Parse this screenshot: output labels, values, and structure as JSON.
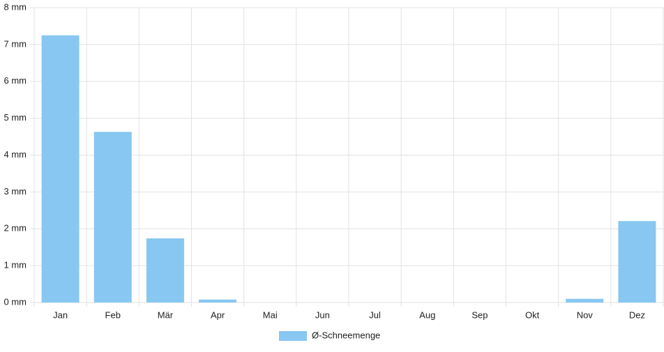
{
  "chart_data": {
    "type": "bar",
    "categories": [
      "Jan",
      "Feb",
      "Mär",
      "Apr",
      "Mai",
      "Jun",
      "Jul",
      "Aug",
      "Sep",
      "Okt",
      "Nov",
      "Dez"
    ],
    "series": [
      {
        "name": "Ø-Schneemenge",
        "color": "#88c7f1",
        "values": [
          7.25,
          4.63,
          1.74,
          0.08,
          0,
          0,
          0,
          0,
          0,
          0,
          0.1,
          2.21
        ]
      }
    ],
    "ylim": [
      0,
      8
    ],
    "yticks": [
      {
        "value": 0,
        "label": "0 mm"
      },
      {
        "value": 1,
        "label": "1 mm"
      },
      {
        "value": 2,
        "label": "2 mm"
      },
      {
        "value": 3,
        "label": "3 mm"
      },
      {
        "value": 4,
        "label": "4 mm"
      },
      {
        "value": 5,
        "label": "5 mm"
      },
      {
        "value": 6,
        "label": "6 mm"
      },
      {
        "value": 7,
        "label": "7 mm"
      },
      {
        "value": 8,
        "label": "8 mm"
      }
    ],
    "grid": true,
    "legend": "bottom"
  }
}
